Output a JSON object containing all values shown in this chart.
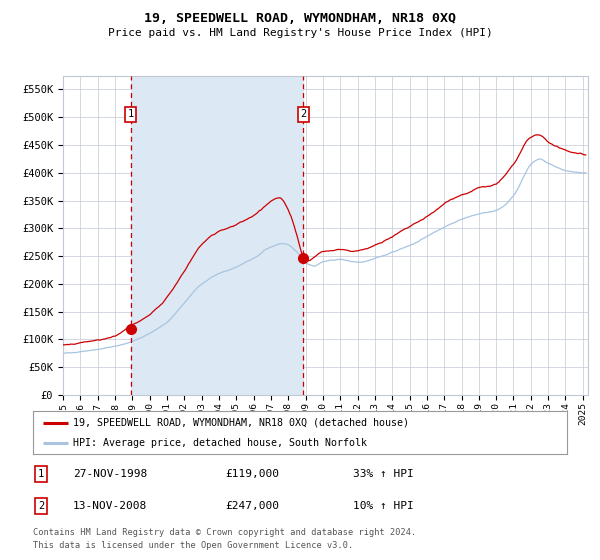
{
  "title": "19, SPEEDWELL ROAD, WYMONDHAM, NR18 0XQ",
  "subtitle": "Price paid vs. HM Land Registry's House Price Index (HPI)",
  "legend_line1": "19, SPEEDWELL ROAD, WYMONDHAM, NR18 0XQ (detached house)",
  "legend_line2": "HPI: Average price, detached house, South Norfolk",
  "annotation1_label": "1",
  "annotation1_date": "27-NOV-1998",
  "annotation1_price": "£119,000",
  "annotation1_hpi": "33% ↑ HPI",
  "annotation1_year": 1998.9,
  "annotation1_value": 119000,
  "annotation2_label": "2",
  "annotation2_date": "13-NOV-2008",
  "annotation2_price": "£247,000",
  "annotation2_hpi": "10% ↑ HPI",
  "annotation2_year": 2008.87,
  "annotation2_value": 247000,
  "hpi_color": "#a8c4e0",
  "price_color": "#cc0000",
  "marker_color": "#cc0000",
  "shade_color": "#dce9f5",
  "grid_color": "#c0c8d8",
  "background_color": "#ffffff",
  "ylim": [
    0,
    575000
  ],
  "yticks": [
    0,
    50000,
    100000,
    150000,
    200000,
    250000,
    300000,
    350000,
    400000,
    450000,
    500000,
    550000
  ],
  "footnote1": "Contains HM Land Registry data © Crown copyright and database right 2024.",
  "footnote2": "This data is licensed under the Open Government Licence v3.0."
}
